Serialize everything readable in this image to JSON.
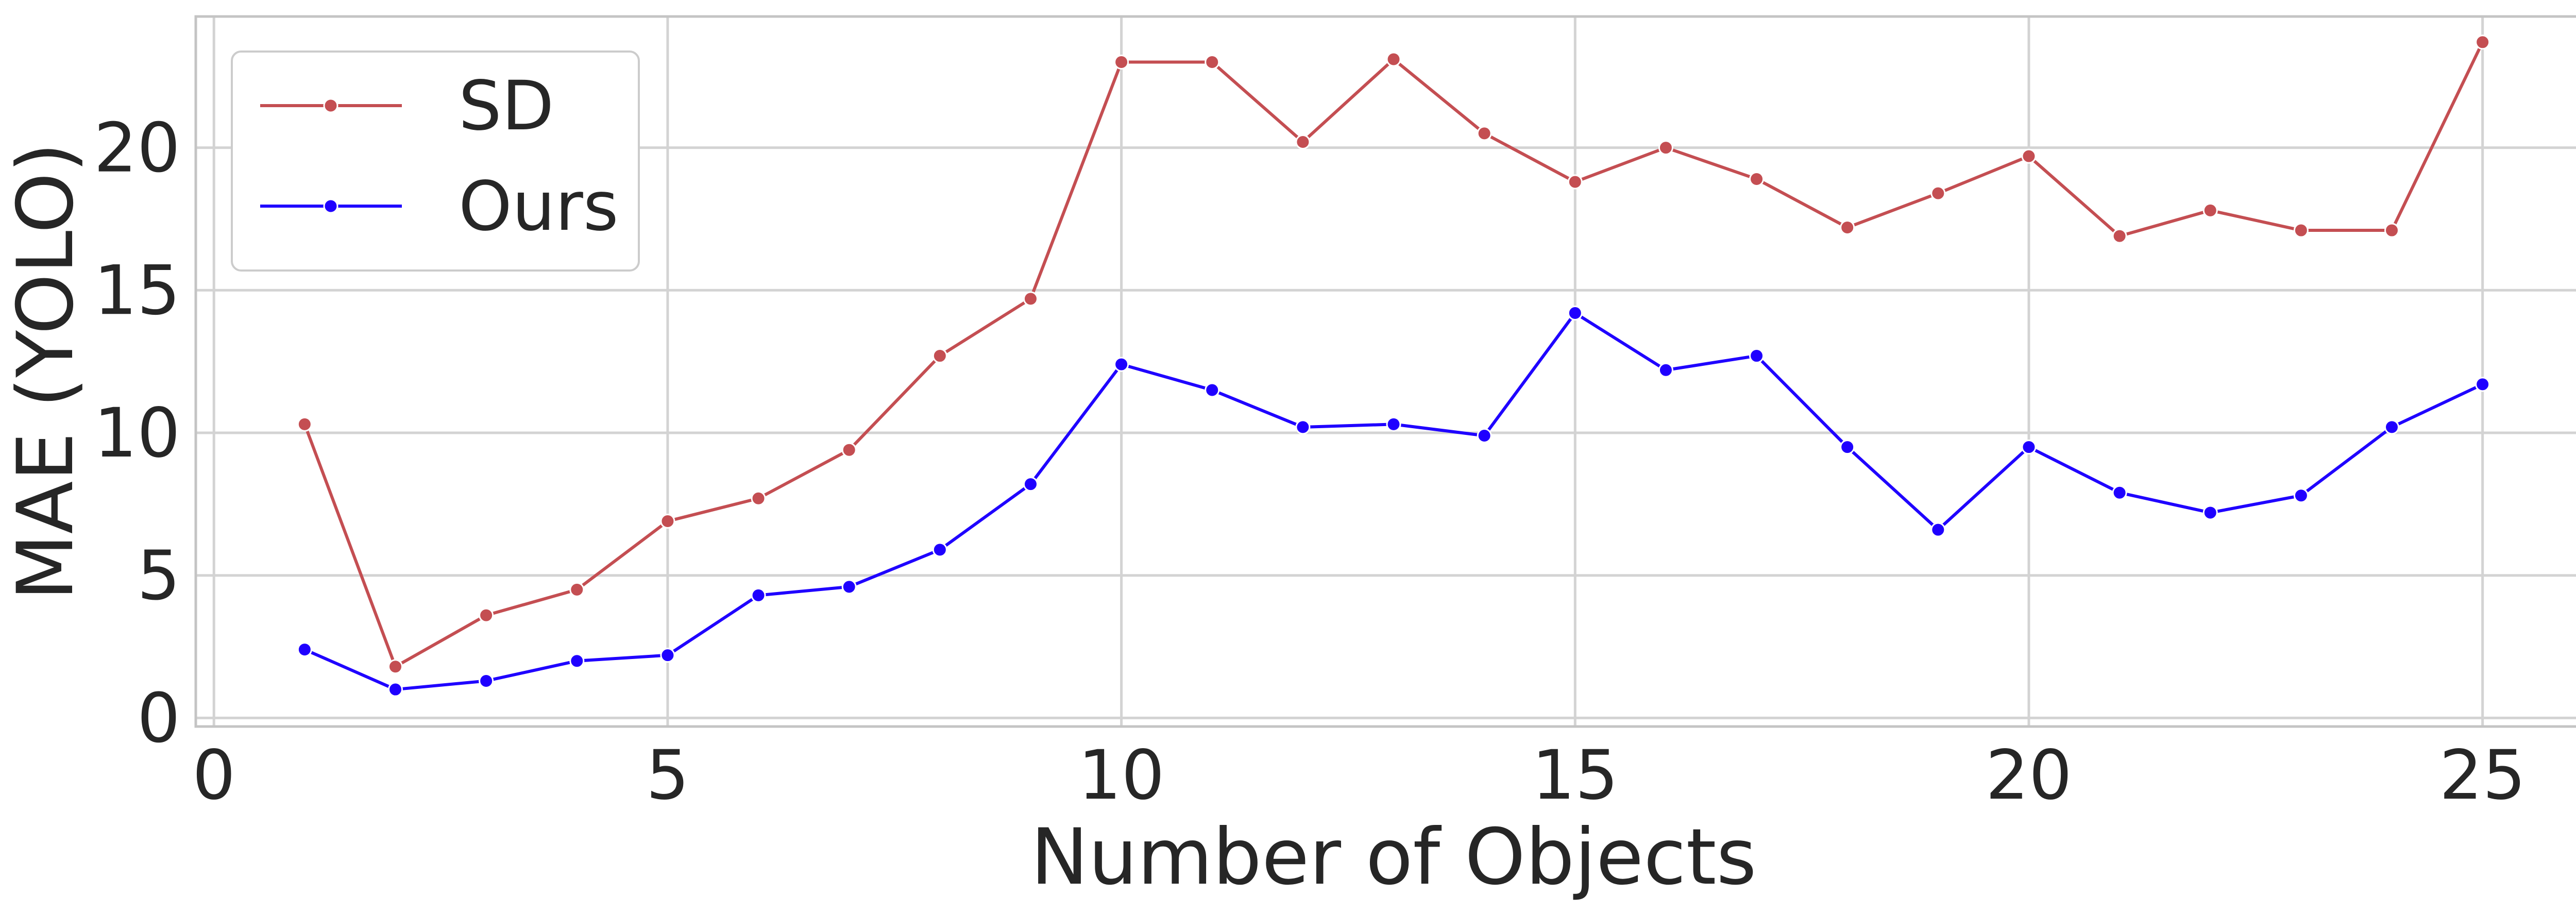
{
  "chart_data": {
    "type": "line",
    "title": "",
    "xlabel": "Number of Objects",
    "ylabel": "MAE (YOLO)",
    "xlim": [
      -0.2,
      26.2
    ],
    "ylim": [
      -0.3,
      24.6
    ],
    "xticks": [
      0,
      5,
      10,
      15,
      20,
      25
    ],
    "yticks": [
      0,
      5,
      10,
      15,
      20
    ],
    "grid": true,
    "legend_position": "upper-left",
    "x": [
      1,
      2,
      3,
      4,
      5,
      6,
      7,
      8,
      9,
      10,
      11,
      12,
      13,
      14,
      15,
      16,
      17,
      18,
      19,
      20,
      21,
      22,
      23,
      24,
      25
    ],
    "series": [
      {
        "name": "SD",
        "color": "#c44e52",
        "values": [
          10.3,
          1.8,
          3.6,
          4.5,
          6.9,
          7.7,
          9.4,
          12.7,
          14.7,
          23.0,
          23.0,
          20.2,
          23.1,
          20.5,
          18.8,
          20.0,
          18.9,
          17.2,
          18.4,
          19.7,
          16.9,
          17.8,
          17.1,
          17.1,
          23.7
        ]
      },
      {
        "name": "Ours",
        "color": "#1f00ff",
        "values": [
          2.4,
          1.0,
          1.3,
          2.0,
          2.2,
          4.3,
          4.6,
          5.9,
          8.2,
          12.4,
          11.5,
          10.2,
          10.3,
          9.9,
          14.2,
          12.2,
          12.7,
          9.5,
          6.6,
          9.5,
          7.9,
          7.2,
          7.8,
          10.2,
          11.7
        ]
      }
    ]
  }
}
